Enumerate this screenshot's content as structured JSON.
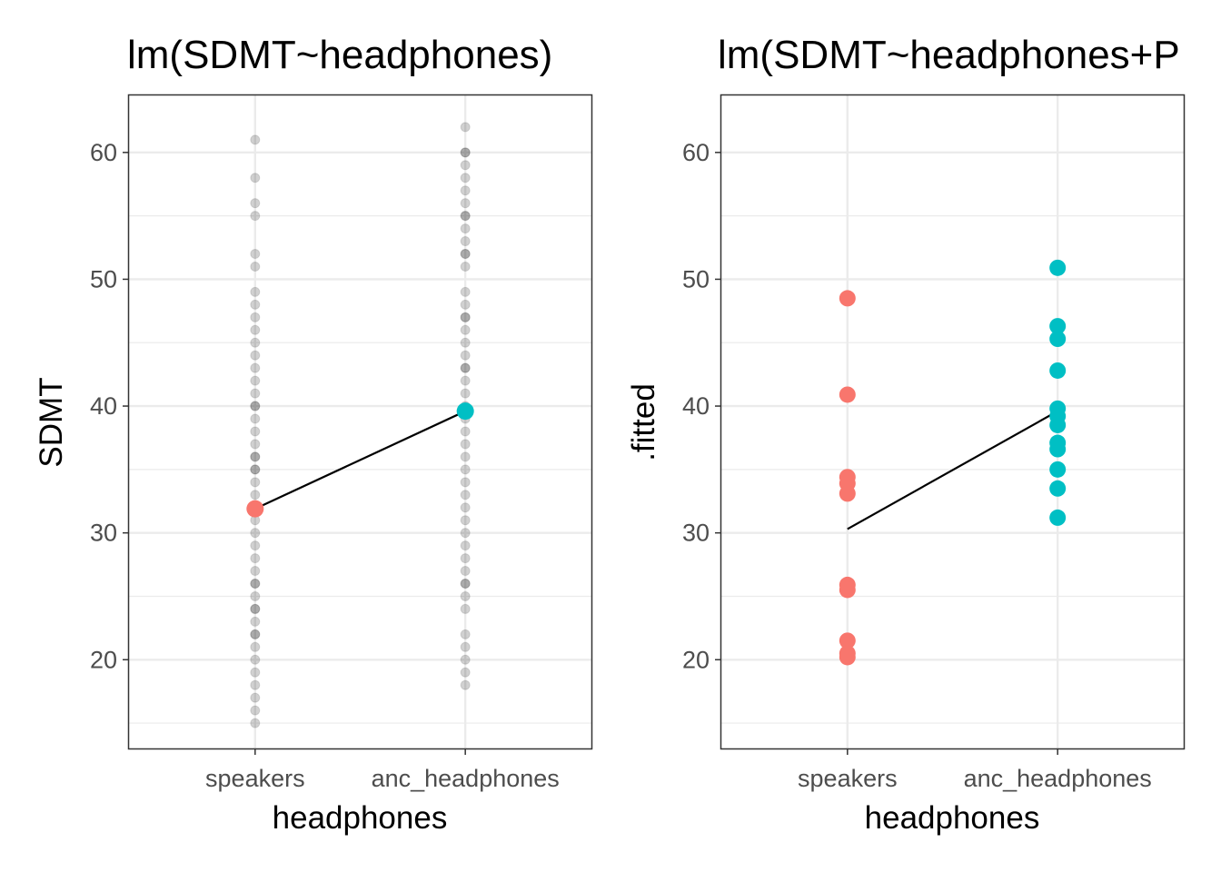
{
  "chart_data": [
    {
      "type": "scatter",
      "title": "lm(SDMT~headphones)",
      "xlabel": "headphones",
      "ylabel": "SDMT",
      "categories": [
        "speakers",
        "anc_headphones"
      ],
      "ylim": [
        13,
        64.5
      ],
      "yticks": [
        20,
        30,
        40,
        50,
        60
      ],
      "grid": true,
      "raw_points": {
        "speakers": [
          15,
          16,
          17,
          18,
          19,
          20,
          21,
          22,
          22,
          23,
          24,
          24,
          25,
          26,
          26,
          27,
          28,
          29,
          30,
          31,
          32,
          33,
          34,
          35,
          35,
          36,
          36,
          37,
          38,
          39,
          40,
          40,
          41,
          42,
          43,
          44,
          45,
          46,
          47,
          48,
          49,
          51,
          52,
          55,
          56,
          58,
          61
        ],
        "anc_headphones": [
          18,
          19,
          20,
          21,
          22,
          24,
          25,
          26,
          26,
          27,
          28,
          29,
          30,
          31,
          32,
          33,
          34,
          35,
          36,
          37,
          38,
          39,
          40,
          41,
          42,
          43,
          43,
          44,
          45,
          46,
          47,
          47,
          48,
          49,
          51,
          52,
          52,
          53,
          54,
          55,
          55,
          56,
          57,
          58,
          59,
          60,
          60,
          62
        ]
      },
      "group_means": [
        {
          "category": "speakers",
          "value": 31.9,
          "color": "#F8766D"
        },
        {
          "category": "anc_headphones",
          "value": 39.6,
          "color": "#00BFC4"
        }
      ]
    },
    {
      "type": "scatter",
      "title": "lm(SDMT~headphones+P",
      "xlabel": "headphones",
      "ylabel": ".fitted",
      "categories": [
        "speakers",
        "anc_headphones"
      ],
      "ylim": [
        13,
        64.5
      ],
      "yticks": [
        20,
        30,
        40,
        50,
        60
      ],
      "grid": true,
      "series": [
        {
          "category": "speakers",
          "color": "#F8766D",
          "values": [
            48.5,
            40.9,
            34.4,
            33.9,
            33.1,
            25.9,
            25.5,
            21.5,
            20.5,
            20.2
          ]
        },
        {
          "category": "anc_headphones",
          "color": "#00BFC4",
          "values": [
            50.9,
            46.3,
            45.3,
            42.8,
            39.8,
            39.2,
            38.5,
            37.1,
            36.6,
            35.0,
            33.5,
            31.2
          ]
        }
      ],
      "line": [
        {
          "category": "speakers",
          "value": 30.3
        },
        {
          "category": "anc_headphones",
          "value": 39.6
        }
      ]
    }
  ]
}
